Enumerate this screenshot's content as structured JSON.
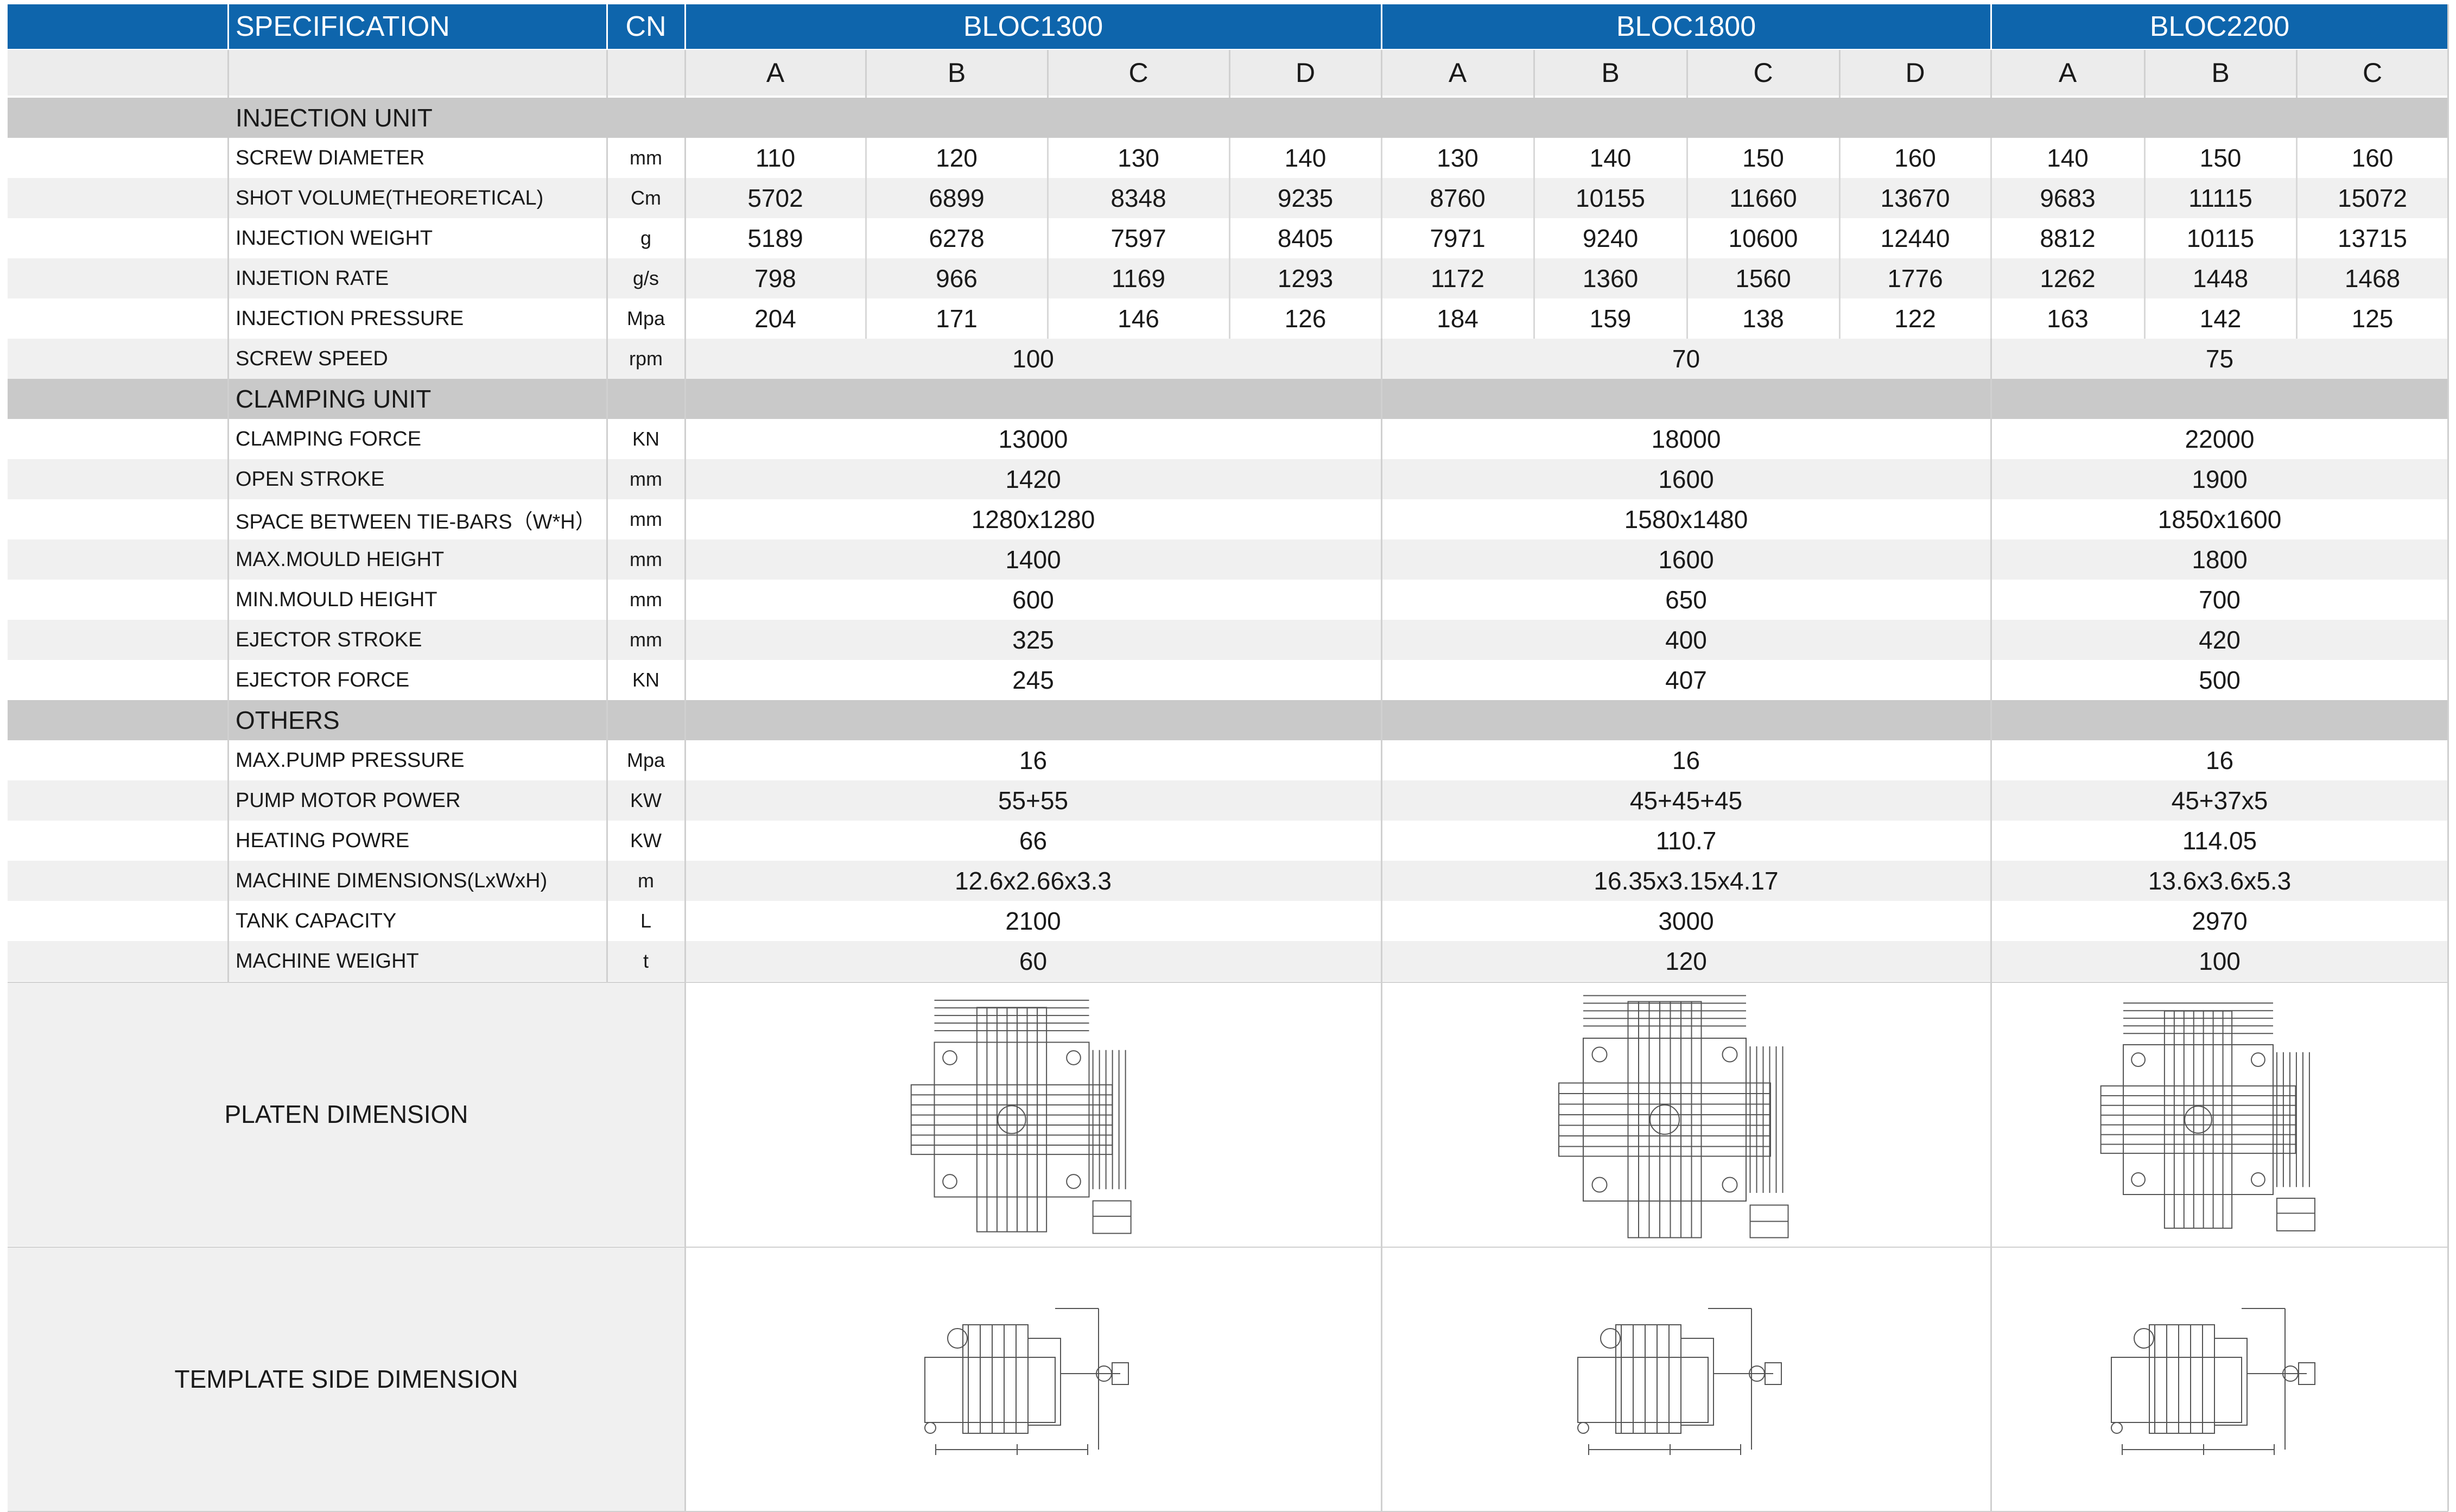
{
  "header": {
    "spec": "SPECIFICATION",
    "cn": "CN",
    "models": [
      "BLOC1300",
      "BLOC1800",
      "BLOC2200"
    ],
    "variants": [
      "A",
      "B",
      "C",
      "D",
      "A",
      "B",
      "C",
      "D",
      "A",
      "B",
      "C"
    ]
  },
  "sections": {
    "injection": "INJECTION UNIT",
    "clamping": "CLAMPING UNIT",
    "others": "OTHERS"
  },
  "injection_rows": [
    {
      "label": "SCREW DIAMETER",
      "unit": "mm",
      "values": [
        "110",
        "120",
        "130",
        "140",
        "130",
        "140",
        "150",
        "160",
        "140",
        "150",
        "160"
      ]
    },
    {
      "label": "SHOT VOLUME(THEORETICAL)",
      "unit": "Cm",
      "values": [
        "5702",
        "6899",
        "8348",
        "9235",
        "8760",
        "10155",
        "11660",
        "13670",
        "9683",
        "11115",
        "15072"
      ]
    },
    {
      "label": "INJECTION WEIGHT",
      "unit": "g",
      "values": [
        "5189",
        "6278",
        "7597",
        "8405",
        "7971",
        "9240",
        "10600",
        "12440",
        "8812",
        "10115",
        "13715"
      ]
    },
    {
      "label": "INJETION RATE",
      "unit": "g/s",
      "values": [
        "798",
        "966",
        "1169",
        "1293",
        "1172",
        "1360",
        "1560",
        "1776",
        "1262",
        "1448",
        "1468"
      ]
    },
    {
      "label": "INJECTION PRESSURE",
      "unit": "Mpa",
      "values": [
        "204",
        "171",
        "146",
        "126",
        "184",
        "159",
        "138",
        "122",
        "163",
        "142",
        "125"
      ]
    }
  ],
  "screw_speed": {
    "label": "SCREW SPEED",
    "unit": "rpm",
    "values": [
      "100",
      "70",
      "75"
    ]
  },
  "clamping_rows": [
    {
      "label": "CLAMPING FORCE",
      "unit": "KN",
      "values": [
        "13000",
        "18000",
        "22000"
      ]
    },
    {
      "label": "OPEN STROKE",
      "unit": "mm",
      "values": [
        "1420",
        "1600",
        "1900"
      ]
    },
    {
      "label": "SPACE BETWEEN TIE-BARS（W*H）",
      "unit": "mm",
      "values": [
        "1280x1280",
        "1580x1480",
        "1850x1600"
      ]
    },
    {
      "label": "MAX.MOULD HEIGHT",
      "unit": "mm",
      "values": [
        "1400",
        "1600",
        "1800"
      ]
    },
    {
      "label": "MIN.MOULD HEIGHT",
      "unit": "mm",
      "values": [
        "600",
        "650",
        "700"
      ]
    },
    {
      "label": "EJECTOR STROKE",
      "unit": "mm",
      "values": [
        "325",
        "400",
        "420"
      ]
    },
    {
      "label": "EJECTOR FORCE",
      "unit": "KN",
      "values": [
        "245",
        "407",
        "500"
      ]
    }
  ],
  "others_rows": [
    {
      "label": "MAX.PUMP PRESSURE",
      "unit": "Mpa",
      "values": [
        "16",
        "16",
        "16"
      ]
    },
    {
      "label": "PUMP MOTOR POWER",
      "unit": "KW",
      "values": [
        "55+55",
        "45+45+45",
        "45+37x5"
      ]
    },
    {
      "label": "HEATING POWRE",
      "unit": "KW",
      "values": [
        "66",
        "110.7",
        "114.05"
      ]
    },
    {
      "label": "MACHINE DIMENSIONS(LxWxH)",
      "unit": "m",
      "values": [
        "12.6x2.66x3.3",
        "16.35x3.15x4.17",
        "13.6x3.6x5.3"
      ]
    },
    {
      "label": "TANK CAPACITY",
      "unit": "L",
      "values": [
        "2100",
        "3000",
        "2970"
      ]
    },
    {
      "label": "MACHINE WEIGHT",
      "unit": "t",
      "values": [
        "60",
        "120",
        "100"
      ]
    }
  ],
  "image_rows": {
    "platen": "PLATEN DIMENSION",
    "template": "TEMPLATE SIDE DIMENSION"
  },
  "colors": {
    "header_blue": "#0e65ac",
    "section_gray": "#c9c9c9",
    "stripe": "#f0f0f0"
  }
}
